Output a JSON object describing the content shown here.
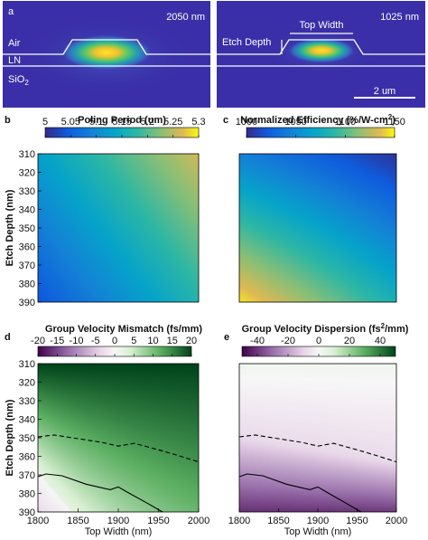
{
  "chart_data": [
    {
      "panel": "a",
      "type": "heatmap",
      "title": "2050 nm",
      "layer_labels": [
        "Air",
        "LN",
        "SiO",
        "2"
      ],
      "colormap": "viridis-like (blue background, yellow mode center)"
    },
    {
      "panel": "",
      "type": "heatmap",
      "title": "1025 nm",
      "annotations": [
        "Top Width",
        "Etch Depth"
      ],
      "scale_bar": "2 um"
    },
    {
      "panel": "b",
      "type": "heatmap",
      "title": "Poling Period (um)",
      "colorbar": {
        "min": 5,
        "max": 5.3,
        "ticks": [
          "5",
          "5.05",
          "5.1",
          "5.15",
          "5.2",
          "5.25",
          "5.3"
        ]
      },
      "ylabel": "Etch Depth (nm)",
      "y_ticks": [
        "310",
        "320",
        "330",
        "340",
        "350",
        "360",
        "370",
        "380",
        "390"
      ],
      "x_range": [
        1800,
        2000
      ],
      "y_range": [
        310,
        390
      ],
      "corners": {
        "top_left": 5.13,
        "top_right": 5.26,
        "bottom_left": 5.04,
        "bottom_right": 5.17
      },
      "grid": false
    },
    {
      "panel": "c",
      "type": "heatmap",
      "title": "Normalized Efficiency (%/W-cm",
      "title_superscript": "2",
      "title_close": ")",
      "colorbar": {
        "min": 1000,
        "max": 1150,
        "ticks": [
          "1000",
          "1050",
          "1100",
          "1150"
        ]
      },
      "x_range": [
        1800,
        2000
      ],
      "y_range": [
        310,
        390
      ],
      "corners": {
        "top_left": 1045,
        "top_right": 1005,
        "bottom_left": 1145,
        "bottom_right": 1080
      },
      "grid": false
    },
    {
      "panel": "d",
      "type": "heatmap",
      "title": "Group Velocity Mismatch (fs/mm)",
      "colorbar": {
        "min": -20,
        "max": 20,
        "ticks": [
          "-20",
          "-15",
          "-10",
          "-5",
          "0",
          "5",
          "10",
          "15",
          "20"
        ]
      },
      "xlabel": "Top Width (nm)",
      "ylabel": "Etch Depth (nm)",
      "x_ticks": [
        "1800",
        "1850",
        "1900",
        "1950",
        "2000"
      ],
      "y_ticks": [
        "310",
        "320",
        "330",
        "340",
        "350",
        "360",
        "370",
        "380",
        "390"
      ],
      "x_range": [
        1800,
        2000
      ],
      "y_range": [
        310,
        390
      ],
      "value_at_top": 20,
      "value_at_bottom": -3,
      "contours": [
        {
          "style": "dashed",
          "x": [
            1800,
            1820,
            1850,
            1880,
            1900,
            1920,
            1950,
            1970,
            2000
          ],
          "y": [
            349.5,
            348.5,
            350.5,
            352.5,
            354.5,
            353,
            356.5,
            359,
            363
          ]
        },
        {
          "style": "solid",
          "x": [
            1800,
            1810,
            1830,
            1860,
            1890,
            1900,
            1910,
            1935,
            1955
          ],
          "y": [
            371,
            369.5,
            370.5,
            375,
            378,
            376.5,
            379,
            385,
            390
          ]
        }
      ],
      "grid": false
    },
    {
      "panel": "e",
      "type": "heatmap",
      "title": "Group Velocity Dispersion (fs",
      "title_superscript": "2",
      "title_close": "/mm)",
      "colorbar": {
        "min": -50,
        "max": 50,
        "ticks": [
          "-40",
          "-20",
          "0",
          "20",
          "40"
        ]
      },
      "xlabel": "Top Width (nm)",
      "x_ticks": [
        "1800",
        "1850",
        "1900",
        "1950",
        "2000"
      ],
      "x_range": [
        1800,
        2000
      ],
      "y_range": [
        310,
        390
      ],
      "value_at_top": 2,
      "value_at_bottom": -45,
      "contours": [
        {
          "style": "dashed",
          "x": [
            1800,
            1820,
            1850,
            1880,
            1900,
            1920,
            1950,
            1970,
            2000
          ],
          "y": [
            349.5,
            348.5,
            350.5,
            352.5,
            354.5,
            353,
            356.5,
            359,
            363
          ]
        },
        {
          "style": "solid",
          "x": [
            1800,
            1810,
            1830,
            1860,
            1890,
            1900,
            1910,
            1935,
            1955
          ],
          "y": [
            371,
            369.5,
            370.5,
            375,
            378,
            376.5,
            379,
            385,
            390
          ]
        }
      ],
      "grid": false
    }
  ]
}
